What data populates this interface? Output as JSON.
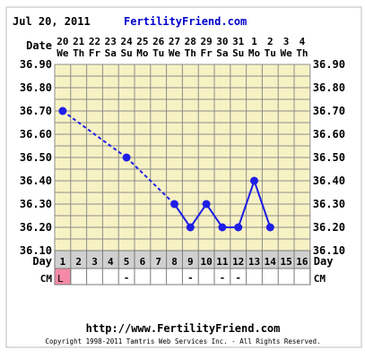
{
  "header": {
    "date": "Jul 20, 2011",
    "site": "FertilityFriend.com"
  },
  "footer": {
    "url": "http://www.FertilityFriend.com",
    "copyright": "Copyright 1998-2011 Tamtris Web Services Inc. - All Rights Reserved."
  },
  "labels": {
    "date_label": "Date",
    "day_label": "Day",
    "cm_label": "CM"
  },
  "colors": {
    "grid_bg": "#f7f2c4",
    "grid_line": "#8c8c8c",
    "series": "#1f1fe6",
    "row_gray": "#d0d0d0",
    "menses": "#f48aa8",
    "header_blue": "#0000cc"
  },
  "chart_data": {
    "type": "line",
    "title": "",
    "xlabel": "Day",
    "ylabel": "",
    "ylim": [
      36.1,
      36.9
    ],
    "yticks": [
      "36.90",
      "36.80",
      "36.70",
      "36.60",
      "36.50",
      "36.40",
      "36.30",
      "36.20",
      "36.10"
    ],
    "dates": [
      "20",
      "21",
      "22",
      "23",
      "24",
      "25",
      "26",
      "27",
      "28",
      "29",
      "30",
      "31",
      "1",
      "2",
      "3",
      "4"
    ],
    "weekdays": [
      "We",
      "Th",
      "Fr",
      "Sa",
      "Su",
      "Mo",
      "Tu",
      "We",
      "Th",
      "Fr",
      "Sa",
      "Su",
      "Mo",
      "Tu",
      "We",
      "Th"
    ],
    "days": [
      "1",
      "2",
      "3",
      "4",
      "5",
      "6",
      "7",
      "8",
      "9",
      "10",
      "11",
      "12",
      "13",
      "14",
      "15",
      "16"
    ],
    "temperatures": [
      36.7,
      null,
      null,
      null,
      36.5,
      null,
      null,
      36.3,
      36.2,
      36.3,
      36.2,
      36.2,
      36.4,
      36.2,
      null,
      null
    ],
    "cm": [
      "L",
      "",
      "",
      "",
      "-",
      "",
      "",
      "",
      "-",
      "",
      "-",
      "-",
      "",
      "",
      "",
      ""
    ],
    "menses_days": [
      1
    ]
  }
}
